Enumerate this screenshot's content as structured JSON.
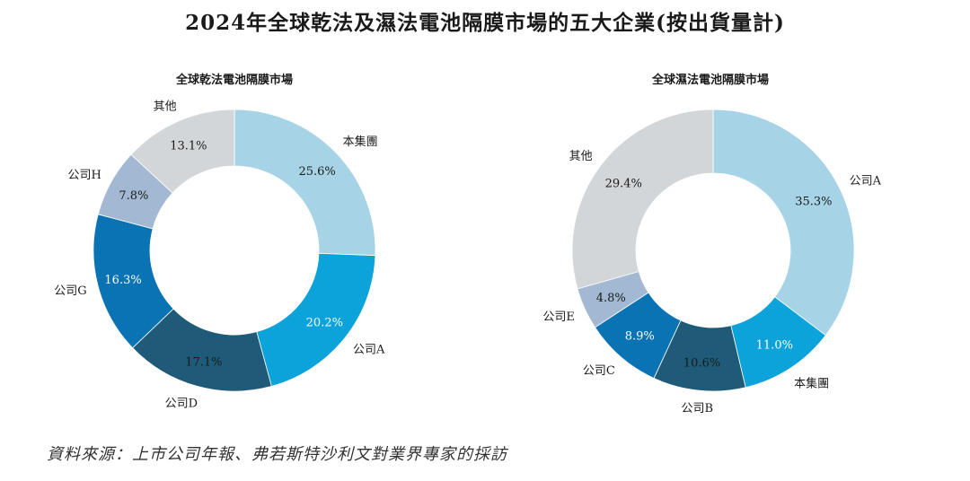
{
  "title": "2024年全球乾法及濕法電池隔膜市場的五大企業(按出貨量計)",
  "source": "資料來源：上市公司年報、弗若斯特沙利文對業界專家的採訪",
  "chart_data": [
    {
      "type": "pie",
      "donut": true,
      "title": "全球乾法電池隔膜市場",
      "slices": [
        {
          "label": "本集團",
          "value": 25.6,
          "value_text": "25.6%",
          "color": "#a6d4e6"
        },
        {
          "label": "公司A",
          "value": 20.2,
          "value_text": "20.2%",
          "color": "#0ba3d9"
        },
        {
          "label": "公司D",
          "value": 17.1,
          "value_text": "17.1%",
          "color": "#1f5b78"
        },
        {
          "label": "公司G",
          "value": 16.3,
          "value_text": "16.3%",
          "color": "#0a73b3"
        },
        {
          "label": "公司H",
          "value": 7.8,
          "value_text": "7.8%",
          "color": "#a3b9d3"
        },
        {
          "label": "其他",
          "value": 13.1,
          "value_text": "13.1%",
          "color": "#d3d6d8"
        }
      ]
    },
    {
      "type": "pie",
      "donut": true,
      "title": "全球濕法電池隔膜市場",
      "slices": [
        {
          "label": "公司A",
          "value": 35.3,
          "value_text": "35.3%",
          "color": "#a6d4e6"
        },
        {
          "label": "本集團",
          "value": 11.0,
          "value_text": "11.0%",
          "color": "#0ba3d9"
        },
        {
          "label": "公司B",
          "value": 10.6,
          "value_text": "10.6%",
          "color": "#1f5b78"
        },
        {
          "label": "公司C",
          "value": 8.9,
          "value_text": "8.9%",
          "color": "#0a73b3"
        },
        {
          "label": "公司E",
          "value": 4.8,
          "value_text": "4.8%",
          "color": "#a3b9d3"
        },
        {
          "label": "其他",
          "value": 29.4,
          "value_text": "29.4%",
          "color": "#d3d6d8"
        }
      ]
    }
  ]
}
